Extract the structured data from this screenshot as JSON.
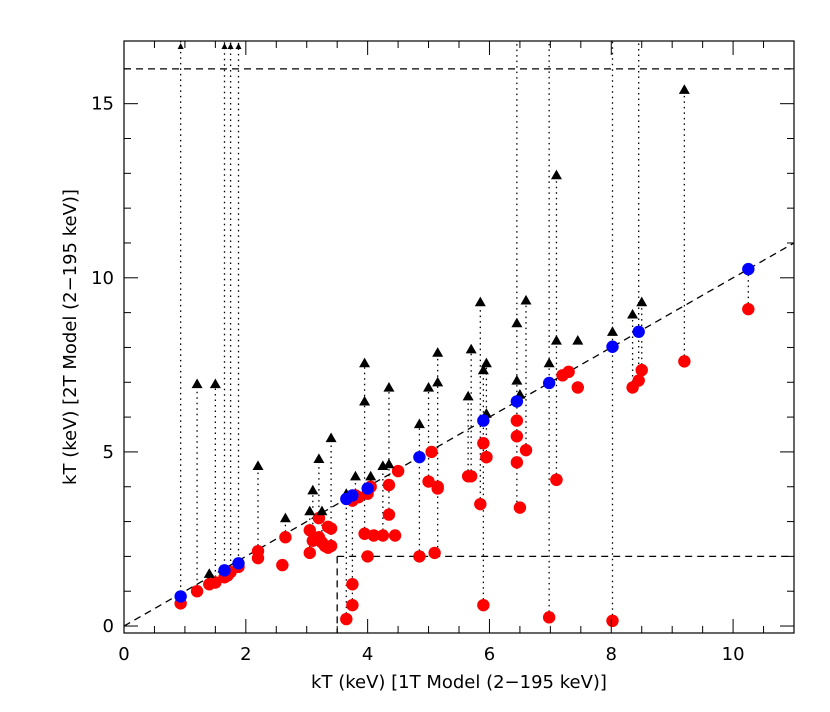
{
  "chart_data": {
    "type": "scatter",
    "xlabel": "kT (keV) [1T Model (2−195 keV)]",
    "ylabel": "kT (keV) [2T Model (2−195 keV)]",
    "xlim": [
      0,
      11
    ],
    "ylim": [
      -0.2,
      16.8
    ],
    "x_major_ticks": [
      0,
      2,
      4,
      6,
      8,
      10
    ],
    "y_major_ticks": [
      0,
      5,
      10,
      15
    ],
    "grid": false,
    "legend": "none",
    "colors": {
      "low": "#ff0000",
      "high": "#000000",
      "one_t": "#0000ff"
    },
    "reference_lines": {
      "identity": {
        "from": [
          0,
          0
        ],
        "to": [
          11,
          11
        ],
        "style": "dashed"
      },
      "upper_limit_y": 16.0,
      "lower_limit_y": 2.0,
      "lower_limit_x": 3.5
    },
    "upper_limit_x": [
      0.93,
      1.65,
      1.75,
      1.88
    ],
    "series": [
      {
        "x": [
          0.93,
          1.2,
          1.4,
          1.5,
          1.65,
          1.7,
          1.75,
          1.88,
          2.2,
          2.2,
          2.6,
          2.65,
          3.05,
          3.05,
          3.1,
          3.2,
          3.2,
          3.25,
          3.3,
          3.35,
          3.35,
          3.4,
          3.4,
          3.65,
          3.75,
          3.75,
          3.75,
          3.8,
          3.85,
          3.95,
          4.0,
          4.0,
          4.05,
          4.1,
          4.25,
          4.35,
          4.35,
          4.45,
          4.5,
          4.85,
          5.0,
          5.05,
          5.1,
          5.15,
          5.15,
          5.65,
          5.7,
          5.85,
          5.9,
          5.9,
          5.95,
          5.95,
          6.45,
          6.45,
          6.45,
          6.5,
          6.6,
          6.98,
          7.1,
          7.1,
          7.2,
          7.3,
          7.45,
          8.02,
          8.35,
          8.45,
          8.5,
          9.2,
          10.25
        ],
        "y": [
          0.65,
          1.0,
          1.2,
          1.25,
          1.4,
          1.45,
          1.55,
          1.7,
          1.95,
          2.15,
          1.75,
          2.55,
          2.75,
          2.1,
          2.45,
          3.1,
          2.55,
          2.4,
          2.3,
          2.25,
          2.85,
          2.3,
          2.8,
          0.2,
          1.2,
          0.6,
          3.6,
          3.75,
          3.7,
          2.65,
          2.0,
          3.8,
          4.0,
          2.6,
          2.6,
          3.2,
          4.05,
          2.6,
          4.45,
          2.0,
          4.15,
          5.0,
          2.1,
          4.0,
          3.95,
          4.3,
          4.3,
          3.5,
          0.6,
          5.25,
          4.85,
          4.85,
          5.9,
          5.45,
          4.7,
          3.4,
          5.05,
          0.25,
          4.2,
          4.2,
          7.2,
          7.3,
          6.85,
          0.15,
          6.85,
          7.05,
          7.35,
          7.6,
          9.1
        ]
      },
      {
        "x": [
          1.2,
          1.4,
          1.5,
          2.2,
          2.65,
          3.05,
          3.1,
          3.2,
          3.25,
          3.4,
          3.65,
          3.8,
          3.95,
          3.95,
          4.05,
          4.25,
          4.35,
          4.35,
          4.85,
          5.0,
          5.15,
          5.15,
          5.65,
          5.7,
          5.85,
          5.9,
          5.95,
          5.95,
          6.45,
          6.45,
          6.5,
          6.6,
          6.98,
          7.1,
          7.1,
          7.45,
          8.02,
          8.35,
          8.5,
          9.2
        ],
        "y": [
          6.95,
          1.5,
          6.95,
          4.6,
          3.1,
          3.3,
          3.9,
          4.8,
          3.3,
          5.4,
          3.8,
          4.3,
          6.45,
          7.55,
          4.3,
          4.6,
          6.85,
          4.65,
          5.8,
          6.85,
          7.0,
          7.85,
          6.6,
          7.95,
          9.3,
          7.35,
          7.55,
          6.1,
          8.7,
          7.05,
          6.65,
          9.35,
          7.55,
          12.95,
          8.2,
          8.2,
          8.45,
          8.95,
          9.3,
          15.4
        ]
      },
      {
        "x": [
          0.93,
          1.65,
          1.88,
          3.65,
          3.75,
          4.0,
          4.85,
          5.9,
          6.45,
          6.98,
          8.02,
          8.45,
          10.25
        ],
        "y": [
          0.85,
          1.6,
          1.8,
          3.65,
          3.75,
          3.95,
          4.85,
          5.9,
          6.45,
          6.98,
          8.02,
          8.45,
          10.25
        ]
      }
    ],
    "links": [
      [
        0.93,
        0.65,
        16.8
      ],
      [
        1.2,
        1.0,
        6.95
      ],
      [
        1.4,
        1.2,
        1.5
      ],
      [
        1.5,
        1.25,
        6.95
      ],
      [
        1.65,
        1.4,
        16.8
      ],
      [
        1.75,
        1.55,
        16.8
      ],
      [
        1.88,
        1.7,
        16.8
      ],
      [
        2.2,
        2.15,
        4.6
      ],
      [
        2.65,
        2.55,
        3.1
      ],
      [
        3.05,
        2.1,
        3.3
      ],
      [
        3.1,
        2.45,
        3.9
      ],
      [
        3.2,
        3.1,
        4.8
      ],
      [
        3.25,
        2.4,
        3.3
      ],
      [
        3.4,
        2.3,
        5.4
      ],
      [
        3.65,
        0.2,
        3.8
      ],
      [
        3.75,
        0.6,
        3.75
      ],
      [
        3.8,
        3.75,
        4.3
      ],
      [
        3.95,
        2.65,
        7.55
      ],
      [
        4.05,
        4.0,
        4.3
      ],
      [
        4.25,
        2.6,
        4.6
      ],
      [
        4.35,
        3.2,
        6.85
      ],
      [
        4.85,
        2.0,
        5.8
      ],
      [
        5.0,
        4.15,
        6.85
      ],
      [
        5.15,
        2.1,
        7.85
      ],
      [
        5.65,
        4.3,
        6.6
      ],
      [
        5.7,
        4.3,
        7.95
      ],
      [
        5.85,
        3.5,
        9.3
      ],
      [
        5.9,
        0.6,
        7.35
      ],
      [
        5.95,
        4.85,
        7.55
      ],
      [
        6.45,
        3.4,
        16.8
      ],
      [
        6.6,
        5.05,
        9.35
      ],
      [
        6.98,
        0.25,
        16.8
      ],
      [
        7.1,
        4.2,
        12.95
      ],
      [
        8.02,
        0.15,
        16.8
      ],
      [
        8.35,
        6.85,
        8.95
      ],
      [
        8.45,
        7.05,
        16.8
      ],
      [
        8.5,
        7.35,
        9.3
      ],
      [
        9.2,
        7.6,
        15.4
      ],
      [
        10.25,
        9.1,
        10.25
      ]
    ]
  }
}
